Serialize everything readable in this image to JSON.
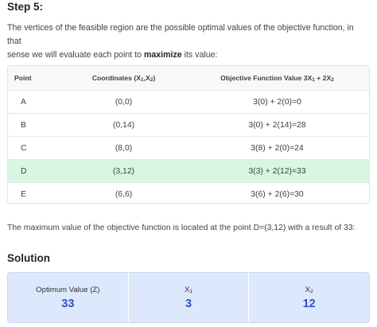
{
  "step": {
    "title": "Step 5:",
    "intro_line1": "The vertices of the feasible region are the possible optimal values of the objective function, in that",
    "intro_line2_before": "sense we will evaluate each point to ",
    "intro_bold": "maximize",
    "intro_line2_after": " its value:"
  },
  "table": {
    "headers": {
      "point": "Point",
      "coords_before": "Coordinates (X",
      "coords_sub1": "1",
      "coords_mid": ",X",
      "coords_sub2": "2",
      "coords_after": ")",
      "obj_before": "Objective Function Value 3X",
      "obj_sub1": "1",
      "obj_mid": " + 2X",
      "obj_sub2": "2"
    },
    "rows": [
      {
        "point": "A",
        "coords": "(0,0)",
        "value": "3(0) + 2(0)=0",
        "highlight": false
      },
      {
        "point": "B",
        "coords": "(0,14)",
        "value": "3(0) + 2(14)=28",
        "highlight": false
      },
      {
        "point": "C",
        "coords": "(8,0)",
        "value": "3(8) + 2(0)=24",
        "highlight": false
      },
      {
        "point": "D",
        "coords": "(3,12)",
        "value": "3(3) + 2(12)=33",
        "highlight": true
      },
      {
        "point": "E",
        "coords": "(6,6)",
        "value": "3(6) + 2(6)=30",
        "highlight": false
      }
    ]
  },
  "conclusion": "The maximum value of the objective function is located at the point D=(3,12) with a result of 33:",
  "solution": {
    "title": "Solution",
    "cells": [
      {
        "label": "Optimum Value (Z)",
        "label_sub": "",
        "value": "33"
      },
      {
        "label": "X",
        "label_sub": "1",
        "value": "3"
      },
      {
        "label": "X",
        "label_sub": "2",
        "value": "12"
      }
    ],
    "accent_color": "#2b52c4",
    "highlight_color": "#d8f7e0"
  }
}
